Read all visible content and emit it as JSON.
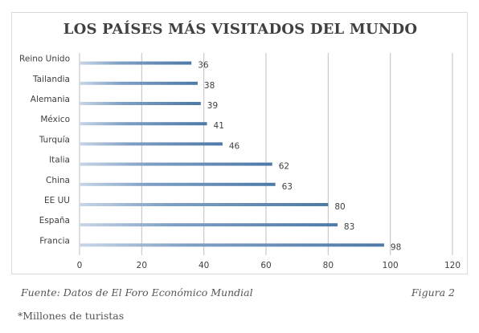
{
  "chart_data": {
    "type": "bar",
    "orientation": "horizontal",
    "title": "LOS PAÍSES MÁS VISITADOS DEL MUNDO",
    "categories": [
      "Reino Unido",
      "Tailandia",
      "Alemania",
      "México",
      "Turquía",
      "Italia",
      "China",
      "EE UU",
      "España",
      "Francia"
    ],
    "values": [
      36,
      38,
      39,
      41,
      46,
      62,
      63,
      80,
      83,
      98
    ],
    "xlim": [
      0,
      120
    ],
    "xticks": [
      0,
      20,
      40,
      60,
      80,
      100,
      120
    ],
    "grid": true,
    "colors": {
      "bar": "#4e79a7",
      "bar_fade": "#c8d6e6",
      "grid": "#bfbfbf"
    }
  },
  "caption": {
    "source": "Fuente:  Datos de El Foro Económico Mundial",
    "figure": "Figura  2",
    "note": "*Millones de turistas"
  }
}
